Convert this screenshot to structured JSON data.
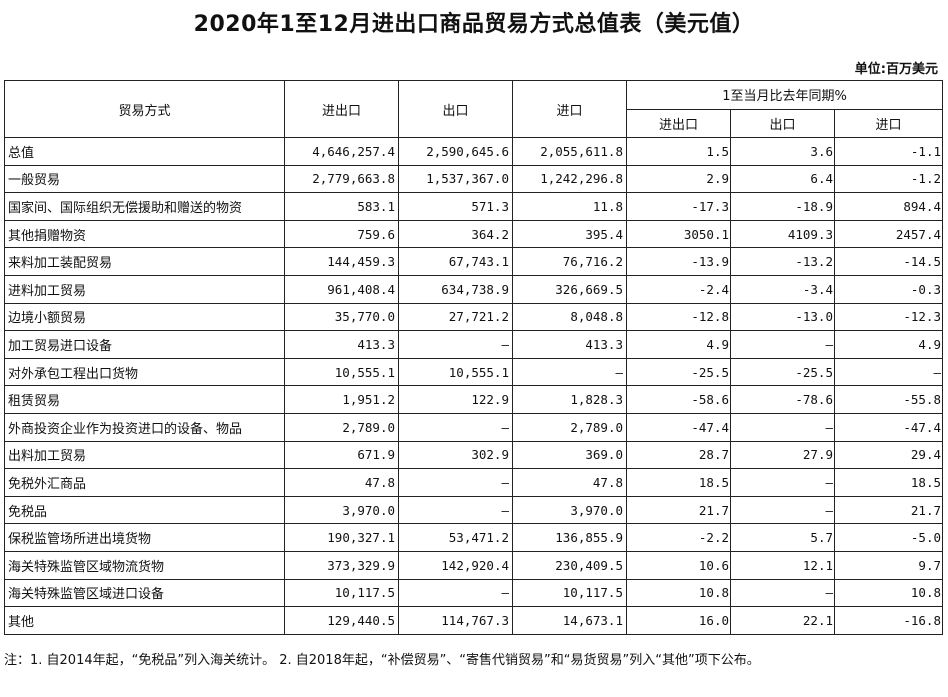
{
  "title": "2020年1至12月进出口商品贸易方式总值表（美元值）",
  "unit": "单位:百万美元",
  "headers": {
    "mode": "贸易方式",
    "total": "进出口",
    "export": "出口",
    "import": "进口",
    "yoy_group": "1至当月比去年同期%",
    "yoy_total": "进出口",
    "yoy_export": "出口",
    "yoy_import": "进口"
  },
  "rows": [
    {
      "name": "总值",
      "total": "4,646,257.4",
      "export": "2,590,645.6",
      "import": "2,055,611.8",
      "yoy_total": "1.5",
      "yoy_export": "3.6",
      "yoy_import": "-1.1"
    },
    {
      "name": "一般贸易",
      "total": "2,779,663.8",
      "export": "1,537,367.0",
      "import": "1,242,296.8",
      "yoy_total": "2.9",
      "yoy_export": "6.4",
      "yoy_import": "-1.2"
    },
    {
      "name": "国家间、国际组织无偿援助和赠送的物资",
      "total": "583.1",
      "export": "571.3",
      "import": "11.8",
      "yoy_total": "-17.3",
      "yoy_export": "-18.9",
      "yoy_import": "894.4"
    },
    {
      "name": "其他捐赠物资",
      "total": "759.6",
      "export": "364.2",
      "import": "395.4",
      "yoy_total": "3050.1",
      "yoy_export": "4109.3",
      "yoy_import": "2457.4"
    },
    {
      "name": "来料加工装配贸易",
      "total": "144,459.3",
      "export": "67,743.1",
      "import": "76,716.2",
      "yoy_total": "-13.9",
      "yoy_export": "-13.2",
      "yoy_import": "-14.5"
    },
    {
      "name": "进料加工贸易",
      "total": "961,408.4",
      "export": "634,738.9",
      "import": "326,669.5",
      "yoy_total": "-2.4",
      "yoy_export": "-3.4",
      "yoy_import": "-0.3"
    },
    {
      "name": "边境小额贸易",
      "total": "35,770.0",
      "export": "27,721.2",
      "import": "8,048.8",
      "yoy_total": "-12.8",
      "yoy_export": "-13.0",
      "yoy_import": "-12.3"
    },
    {
      "name": "加工贸易进口设备",
      "total": "413.3",
      "export": "–",
      "import": "413.3",
      "yoy_total": "4.9",
      "yoy_export": "–",
      "yoy_import": "4.9"
    },
    {
      "name": "对外承包工程出口货物",
      "total": "10,555.1",
      "export": "10,555.1",
      "import": "–",
      "yoy_total": "-25.5",
      "yoy_export": "-25.5",
      "yoy_import": "–"
    },
    {
      "name": "租赁贸易",
      "total": "1,951.2",
      "export": "122.9",
      "import": "1,828.3",
      "yoy_total": "-58.6",
      "yoy_export": "-78.6",
      "yoy_import": "-55.8"
    },
    {
      "name": "外商投资企业作为投资进口的设备、物品",
      "total": "2,789.0",
      "export": "–",
      "import": "2,789.0",
      "yoy_total": "-47.4",
      "yoy_export": "–",
      "yoy_import": "-47.4"
    },
    {
      "name": "出料加工贸易",
      "total": "671.9",
      "export": "302.9",
      "import": "369.0",
      "yoy_total": "28.7",
      "yoy_export": "27.9",
      "yoy_import": "29.4"
    },
    {
      "name": "免税外汇商品",
      "total": "47.8",
      "export": "–",
      "import": "47.8",
      "yoy_total": "18.5",
      "yoy_export": "–",
      "yoy_import": "18.5"
    },
    {
      "name": "免税品",
      "total": "3,970.0",
      "export": "–",
      "import": "3,970.0",
      "yoy_total": "21.7",
      "yoy_export": "–",
      "yoy_import": "21.7"
    },
    {
      "name": "保税监管场所进出境货物",
      "total": "190,327.1",
      "export": "53,471.2",
      "import": "136,855.9",
      "yoy_total": "-2.2",
      "yoy_export": "5.7",
      "yoy_import": "-5.0"
    },
    {
      "name": "海关特殊监管区域物流货物",
      "total": "373,329.9",
      "export": "142,920.4",
      "import": "230,409.5",
      "yoy_total": "10.6",
      "yoy_export": "12.1",
      "yoy_import": "9.7"
    },
    {
      "name": "海关特殊监管区域进口设备",
      "total": "10,117.5",
      "export": "–",
      "import": "10,117.5",
      "yoy_total": "10.8",
      "yoy_export": "–",
      "yoy_import": "10.8"
    },
    {
      "name": "其他",
      "total": "129,440.5",
      "export": "114,767.3",
      "import": "14,673.1",
      "yoy_total": "16.0",
      "yoy_export": "22.1",
      "yoy_import": "-16.8"
    }
  ],
  "note": "注：1. 自2014年起，“免税品”列入海关统计。 2. 自2018年起，“补偿贸易”、“寄售代销贸易”和“易货贸易”列入“其他”项下公布。"
}
